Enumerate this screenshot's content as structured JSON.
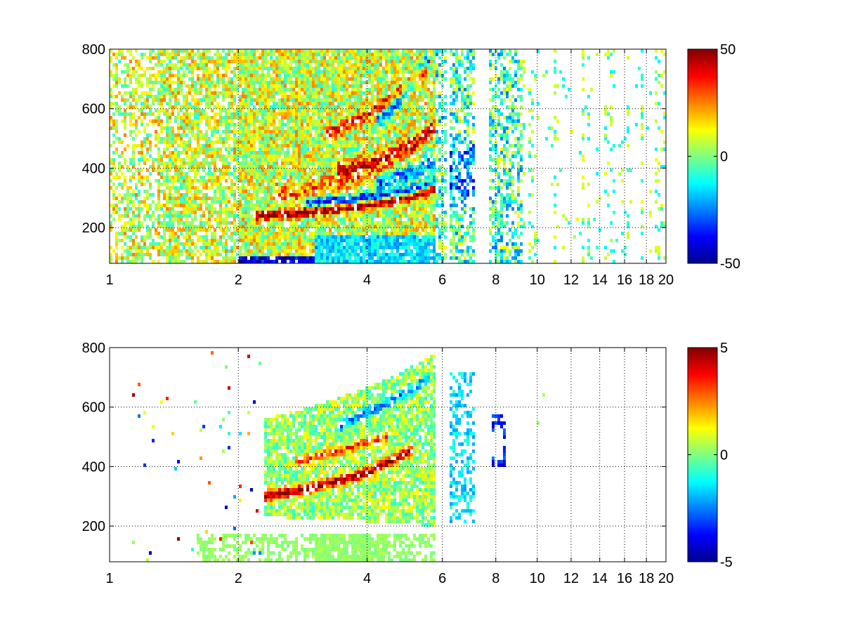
{
  "chart_data": [
    {
      "type": "heatmap",
      "title": "",
      "xlabel": "",
      "ylabel": "",
      "xlim": [
        1,
        20
      ],
      "ylim": [
        80,
        800
      ],
      "x_scale": "log2",
      "x_ticks": [
        1,
        2,
        4,
        6,
        8,
        10,
        12,
        14,
        16,
        18,
        20
      ],
      "x_tick_labels": [
        "1",
        "2",
        "4",
        "6",
        "8",
        "10",
        "12",
        "14",
        "16",
        "18",
        "20"
      ],
      "y_ticks": [
        200,
        400,
        600,
        800
      ],
      "y_tick_labels": [
        "200",
        "400",
        "600",
        "800"
      ],
      "grid": true,
      "grid_style": "dotted",
      "colormap": "jet",
      "missing_color": "#ffffff",
      "colorbar": {
        "clim": [
          -50,
          50
        ],
        "tick_labels": [
          "50",
          "0",
          "-50"
        ],
        "placement": "right"
      },
      "features": {
        "dense_region_x": [
          1,
          5.8
        ],
        "patchy_region_x": [
          5.8,
          9.3
        ],
        "sparse_region_x": [
          9.3,
          20
        ],
        "high_ridges": [
          {
            "x": [
              2.3,
              3,
              4,
              5,
              5.7
            ],
            "y": [
              240,
              255,
              275,
              300,
              330
            ],
            "value": 45,
            "width": 10
          },
          {
            "x": [
              3.5,
              4.2,
              5,
              5.7
            ],
            "y": [
              390,
              420,
              470,
              530
            ],
            "value": 35,
            "width": 18
          },
          {
            "x": [
              3.3,
              4,
              4.7,
              5.4
            ],
            "y": [
              520,
              580,
              650,
              720
            ],
            "value": 28,
            "width": 14
          },
          {
            "x": [
              2.5,
              3.2,
              3.9,
              4.5
            ],
            "y": [
              310,
              340,
              380,
              420
            ],
            "value": 18,
            "width": 20
          }
        ],
        "low_ridges": [
          {
            "x": [
              3,
              4,
              5,
              5.7
            ],
            "y": [
              285,
              300,
              325,
              350
            ],
            "value": -42,
            "width": 12
          },
          {
            "x": [
              4.3,
              5,
              5.7
            ],
            "y": [
              350,
              380,
              420
            ],
            "value": -35,
            "width": 20
          },
          {
            "x": [
              4.3,
              4.9,
              5.5
            ],
            "y": [
              560,
              650,
              760
            ],
            "value": -30,
            "width": 16
          }
        ],
        "bottom_band": {
          "y": [
            85,
            100
          ],
          "x": [
            1,
            5.8
          ],
          "value": -40
        }
      }
    },
    {
      "type": "heatmap",
      "title": "",
      "xlabel": "",
      "ylabel": "",
      "xlim": [
        1,
        20
      ],
      "ylim": [
        80,
        800
      ],
      "x_scale": "log2",
      "x_ticks": [
        1,
        2,
        4,
        6,
        8,
        10,
        12,
        14,
        16,
        18,
        20
      ],
      "x_tick_labels": [
        "1",
        "2",
        "4",
        "6",
        "8",
        "10",
        "12",
        "14",
        "16",
        "18",
        "20"
      ],
      "y_ticks": [
        200,
        400,
        600,
        800
      ],
      "y_tick_labels": [
        "200",
        "400",
        "600",
        "800"
      ],
      "grid": true,
      "grid_style": "dotted",
      "colormap": "jet",
      "missing_color": "#ffffff",
      "colorbar": {
        "clim": [
          -5,
          5
        ],
        "tick_labels": [
          "5",
          "0",
          "-5"
        ],
        "placement": "right"
      },
      "features": {
        "wedge_region": {
          "x": [
            2.3,
            5.8
          ],
          "y_low_at_start": 230,
          "y_high_at_start": 560,
          "y_high_at_end": 780
        },
        "high_ridges": [
          {
            "x": [
              2.3,
              3,
              4,
              5
            ],
            "y": [
              300,
              330,
              380,
              450
            ],
            "value": 4.5,
            "width": 12
          },
          {
            "x": [
              2.8,
              3.6,
              4.4
            ],
            "y": [
              420,
              460,
              500
            ],
            "value": 3,
            "width": 10
          }
        ],
        "low_ridges": [
          {
            "x": [
              3.5,
              4.5,
              5.5
            ],
            "y": [
              540,
              620,
              690
            ],
            "value": -2.5,
            "width": 14
          }
        ],
        "bottom_band": {
          "y": [
            80,
            170
          ],
          "x": [
            1.6,
            5.8
          ],
          "value": 0.2
        },
        "patch_x": [
          6.2,
          7.1
        ],
        "arc_patch": {
          "x": [
            7.8,
            8.5
          ],
          "y": [
            400,
            580
          ],
          "value": -3.5
        }
      }
    }
  ]
}
